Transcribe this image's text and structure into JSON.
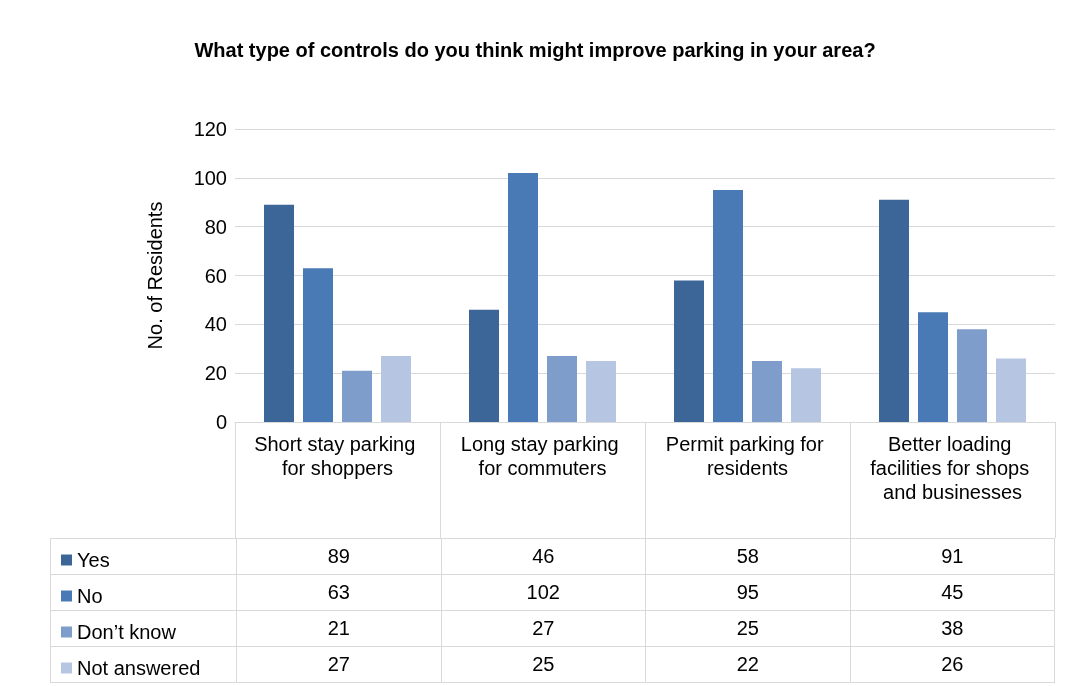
{
  "chart_data": {
    "type": "bar",
    "title": "What type of controls do you think might improve parking in your area?",
    "ylabel": "No. of Residents",
    "categories": [
      "Short stay parking for shoppers",
      "Long stay parking for commuters",
      "Permit parking for residents",
      "Better loading facilities for shops and businesses"
    ],
    "series": [
      {
        "name": "Yes",
        "color": "#3c6698",
        "values": [
          89,
          46,
          58,
          91
        ]
      },
      {
        "name": "No",
        "color": "#4a7ab6",
        "values": [
          63,
          102,
          95,
          45
        ]
      },
      {
        "name": "Don’t know",
        "color": "#7f9dcb",
        "values": [
          21,
          27,
          25,
          38
        ]
      },
      {
        "name": "Not answered",
        "color": "#b5c5e2",
        "values": [
          27,
          25,
          22,
          26
        ]
      }
    ],
    "ylim": [
      0,
      120
    ],
    "yticks": [
      0,
      20,
      40,
      60,
      80,
      100,
      120
    ],
    "grid": "y",
    "legend": "bottom left",
    "data_labels": true
  }
}
